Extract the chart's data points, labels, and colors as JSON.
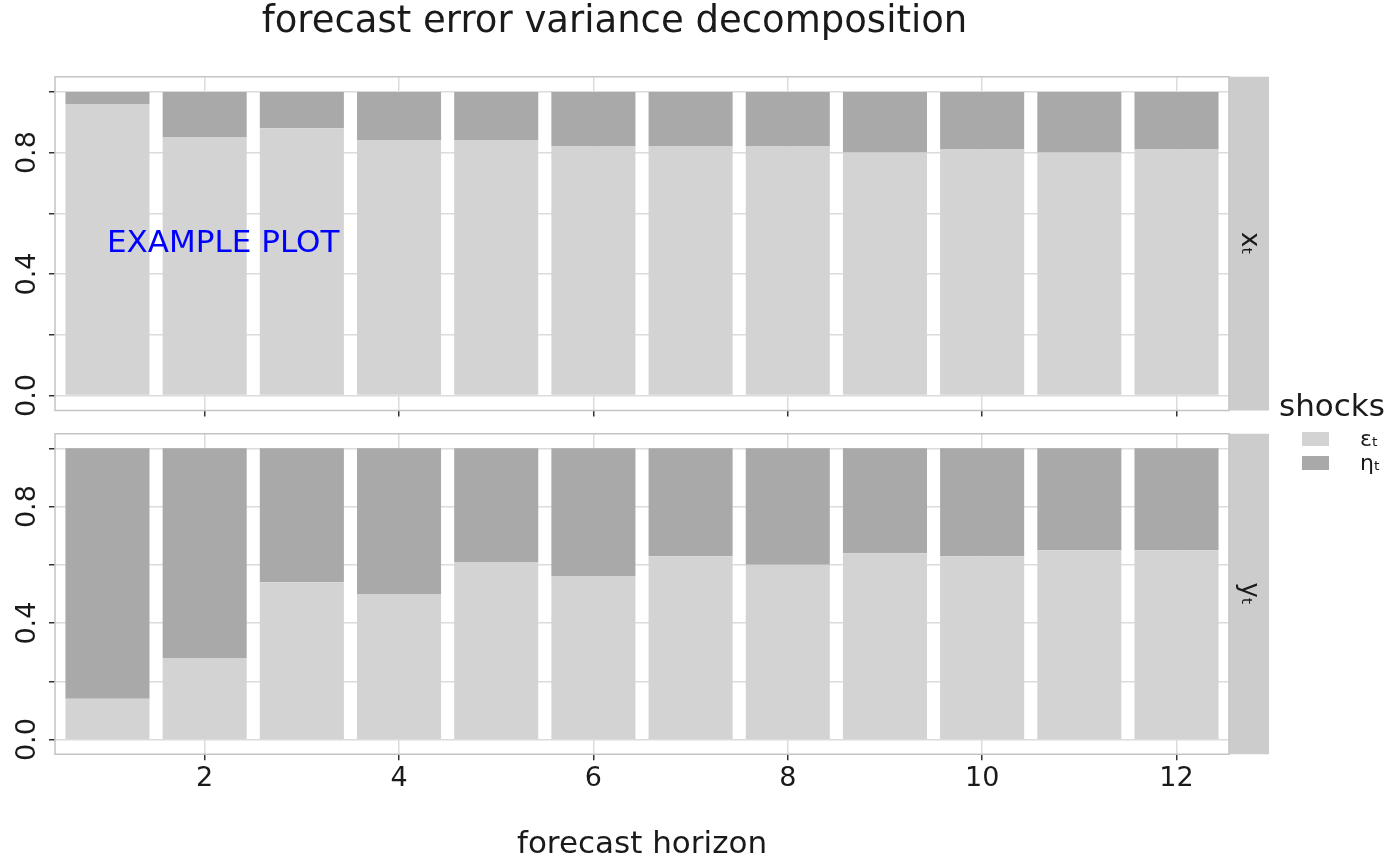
{
  "chart_data": [
    {
      "type": "bar",
      "title": "forecast error variance decomposition",
      "y2label": "xₜ",
      "annotations": [
        "EXAMPLE PLOT"
      ],
      "x": [
        1,
        2,
        3,
        4,
        5,
        6,
        7,
        8,
        9,
        10,
        11,
        12
      ],
      "xlim": [
        0.46,
        12.54
      ],
      "xticks": [
        2,
        4,
        6,
        8,
        10,
        12
      ],
      "ylim": [
        -0.05,
        1.05
      ],
      "yticks": [
        {
          "value": 0,
          "label": "0.0"
        },
        {
          "value": 0.2,
          "label": null
        },
        {
          "value": 0.4,
          "label": "0.4"
        },
        {
          "value": 0.6,
          "label": null
        },
        {
          "value": 0.8,
          "label": "0.8"
        },
        {
          "value": 1,
          "label": null
        }
      ],
      "stacked": true,
      "grid": true,
      "tick_labels": "y",
      "series": [
        {
          "color": "#d3d3d3",
          "values": [
            0.96,
            0.85,
            0.88,
            0.84,
            0.84,
            0.82,
            0.82,
            0.82,
            0.8,
            0.81,
            0.8,
            0.81
          ]
        },
        {
          "color": "#a9a9a9",
          "values": [
            0.04,
            0.15,
            0.12,
            0.16,
            0.16,
            0.18,
            0.18,
            0.18,
            0.2,
            0.19,
            0.2,
            0.19
          ]
        }
      ]
    },
    {
      "type": "bar",
      "xlabel": "forecast horizon",
      "y2label": "yₜ",
      "legend_title": "shocks",
      "legend": "right",
      "x": [
        1,
        2,
        3,
        4,
        5,
        6,
        7,
        8,
        9,
        10,
        11,
        12
      ],
      "xlim": [
        0.46,
        12.54
      ],
      "xticks": [
        2,
        4,
        6,
        8,
        10,
        12
      ],
      "ylim": [
        -0.05,
        1.05
      ],
      "yticks": [
        {
          "value": 0,
          "label": "0.0"
        },
        {
          "value": 0.2,
          "label": null
        },
        {
          "value": 0.4,
          "label": "0.4"
        },
        {
          "value": 0.6,
          "label": null
        },
        {
          "value": 0.8,
          "label": "0.8"
        },
        {
          "value": 1,
          "label": null
        }
      ],
      "stacked": true,
      "grid": true,
      "series": [
        {
          "name": "εₜ",
          "color": "#d3d3d3",
          "values": [
            0.14,
            0.28,
            0.54,
            0.5,
            0.61,
            0.56,
            0.63,
            0.6,
            0.64,
            0.63,
            0.65,
            0.65
          ]
        },
        {
          "name": "ηₜ",
          "color": "#a9a9a9",
          "values": [
            0.86,
            0.72,
            0.46,
            0.5,
            0.39,
            0.44,
            0.37,
            0.4,
            0.36,
            0.37,
            0.35,
            0.35
          ]
        }
      ]
    }
  ]
}
